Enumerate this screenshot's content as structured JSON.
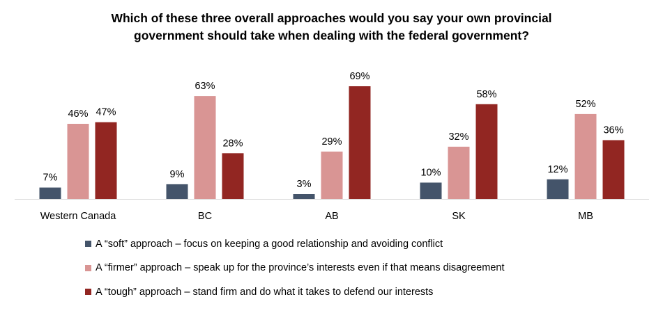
{
  "chart_data": {
    "type": "bar",
    "title_lines": [
      "Which of these three overall approaches would you say your own provincial",
      "government should take when dealing with the federal government?"
    ],
    "categories": [
      "Western Canada",
      "BC",
      "AB",
      "SK",
      "MB"
    ],
    "series": [
      {
        "name": "A “soft” approach – focus on keeping a good relationship and avoiding conflict",
        "color": "#44546A",
        "values": [
          7,
          9,
          3,
          10,
          12
        ]
      },
      {
        "name": "A “firmer” approach – speak up for the province’s interests even if that means disagreement",
        "color": "#D99594",
        "values": [
          46,
          63,
          29,
          32,
          52
        ]
      },
      {
        "name": "A “tough” approach – stand firm and do what it takes to defend our interests",
        "color": "#922622",
        "values": [
          47,
          28,
          69,
          58,
          36
        ]
      }
    ],
    "value_suffix": "%",
    "ylim": [
      0,
      69
    ],
    "grid": false,
    "legend_position": "bottom"
  }
}
